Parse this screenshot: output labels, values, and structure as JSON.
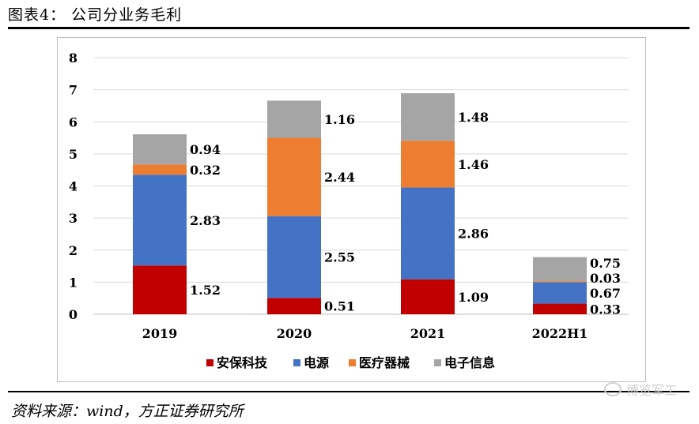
{
  "figure": {
    "title": "图表4：  公司分业务毛利",
    "source": "资料来源：wind，方正证券研究所",
    "watermark": "博览军工",
    "watermark_icon": "wechat-icon"
  },
  "chart_data": {
    "type": "bar",
    "stacked": true,
    "title": "",
    "xlabel": "",
    "ylabel": "",
    "ylim": [
      0,
      8
    ],
    "yticks": [
      0,
      1,
      2,
      3,
      4,
      5,
      6,
      7,
      8
    ],
    "grid": true,
    "legend_position": "bottom",
    "categories": [
      "2019",
      "2020",
      "2021",
      "2022H1"
    ],
    "series": [
      {
        "name": "安保科技",
        "color": "#c00000",
        "values": [
          1.52,
          0.51,
          1.09,
          0.33
        ],
        "labels": [
          "1.52",
          "0.51",
          "1.09",
          "0.33"
        ]
      },
      {
        "name": "电源",
        "color": "#4472c4",
        "values": [
          2.83,
          2.55,
          2.86,
          0.67
        ],
        "labels": [
          "2.83",
          "2.55",
          "2.86",
          "0.67"
        ]
      },
      {
        "name": "医疗器械",
        "color": "#ed7d31",
        "values": [
          0.32,
          2.44,
          1.46,
          0.03
        ],
        "labels": [
          "0.32",
          "2.44",
          "1.46",
          "0.03"
        ]
      },
      {
        "name": "电子信息",
        "color": "#a5a5a5",
        "values": [
          0.94,
          1.16,
          1.48,
          0.75
        ],
        "labels": [
          "0.94",
          "1.16",
          "1.48",
          "0.75"
        ]
      }
    ]
  }
}
